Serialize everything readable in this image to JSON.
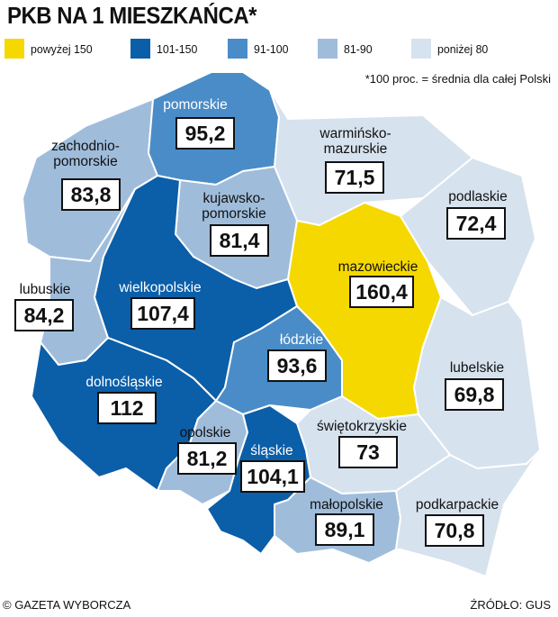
{
  "title": "PKB NA 1 MIESZKAŃCA*",
  "legend": [
    {
      "label": "powyżej 150",
      "color": "#f5d800"
    },
    {
      "label": "101-150",
      "color": "#0b5ea8"
    },
    {
      "label": "91-100",
      "color": "#4a8cc7"
    },
    {
      "label": "81-90",
      "color": "#9fbddb"
    },
    {
      "label": "poniżej 80",
      "color": "#d6e2ee"
    }
  ],
  "footnote": "*100 proc. = średnia dla całej Polski",
  "regions": [
    {
      "id": "pomorskie",
      "name": "pomorskie",
      "value": "95,2",
      "color": "#4a8cc7"
    },
    {
      "id": "zachodniopomorskie",
      "name": "zachodnio-\npomorskie",
      "value": "83,8",
      "color": "#9fbddb"
    },
    {
      "id": "warminsko-mazurskie",
      "name": "warmińsko-\nmazurskie",
      "value": "71,5",
      "color": "#d6e2ee"
    },
    {
      "id": "kujawsko-pomorskie",
      "name": "kujawsko-\npomorskie",
      "value": "81,4",
      "color": "#9fbddb"
    },
    {
      "id": "podlaskie",
      "name": "podlaskie",
      "value": "72,4",
      "color": "#d6e2ee"
    },
    {
      "id": "mazowieckie",
      "name": "mazowieckie",
      "value": "160,4",
      "color": "#f5d800"
    },
    {
      "id": "lubuskie",
      "name": "lubuskie",
      "value": "84,2",
      "color": "#9fbddb"
    },
    {
      "id": "wielkopolskie",
      "name": "wielkopolskie",
      "value": "107,4",
      "color": "#0b5ea8"
    },
    {
      "id": "lodzkie",
      "name": "łódzkie",
      "value": "93,6",
      "color": "#4a8cc7"
    },
    {
      "id": "lubelskie",
      "name": "lubelskie",
      "value": "69,8",
      "color": "#d6e2ee"
    },
    {
      "id": "dolnoslaskie",
      "name": "dolnośląskie",
      "value": "112",
      "color": "#0b5ea8"
    },
    {
      "id": "swietokrzyskie",
      "name": "świętokrzyskie",
      "value": "73",
      "color": "#d6e2ee"
    },
    {
      "id": "opolskie",
      "name": "opolskie",
      "value": "81,2",
      "color": "#9fbddb"
    },
    {
      "id": "slaskie",
      "name": "śląskie",
      "value": "104,1",
      "color": "#0b5ea8"
    },
    {
      "id": "malopolskie",
      "name": "małopolskie",
      "value": "89,1",
      "color": "#9fbddb"
    },
    {
      "id": "podkarpackie",
      "name": "podkarpackie",
      "value": "70,8",
      "color": "#d6e2ee"
    }
  ],
  "footer": {
    "publisher": "© GAZETA WYBORCZA",
    "source": "ŹRÓDŁO: GUS"
  }
}
